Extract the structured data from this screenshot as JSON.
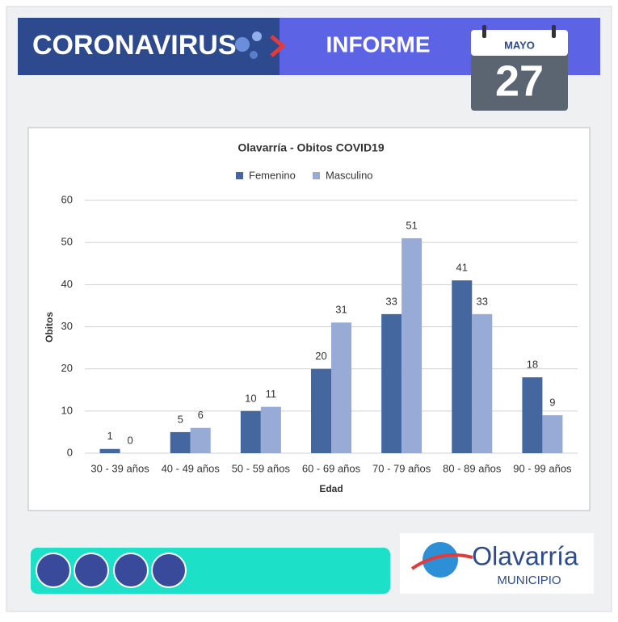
{
  "header": {
    "left": "CORONAVIRUS",
    "center": "INFORME",
    "month": "MAYO",
    "day": "27"
  },
  "footer": {
    "logo": "Olavarría",
    "logo_sub": "MUNICIPIO"
  },
  "chart_data": {
    "type": "bar",
    "title": "Olavarría - Obitos COVID19",
    "x_label": "Edad",
    "y_label": "Obitos",
    "categories": [
      "30 - 39 años",
      "40 - 49 años",
      "50 - 59 años",
      "60 - 69 años",
      "70 - 79 años",
      "80 - 89 años",
      "90 - 99 años"
    ],
    "series": [
      {
        "name": "Femenino",
        "color": "#44679f",
        "values": [
          1,
          5,
          10,
          20,
          33,
          41,
          18
        ]
      },
      {
        "name": "Masculino",
        "color": "#98abd6",
        "values": [
          0,
          6,
          11,
          31,
          51,
          33,
          9
        ]
      }
    ],
    "ylim": [
      0,
      60
    ],
    "yticks": [
      0,
      10,
      20,
      30,
      40,
      50,
      60
    ],
    "grid": true,
    "legend": "top"
  }
}
